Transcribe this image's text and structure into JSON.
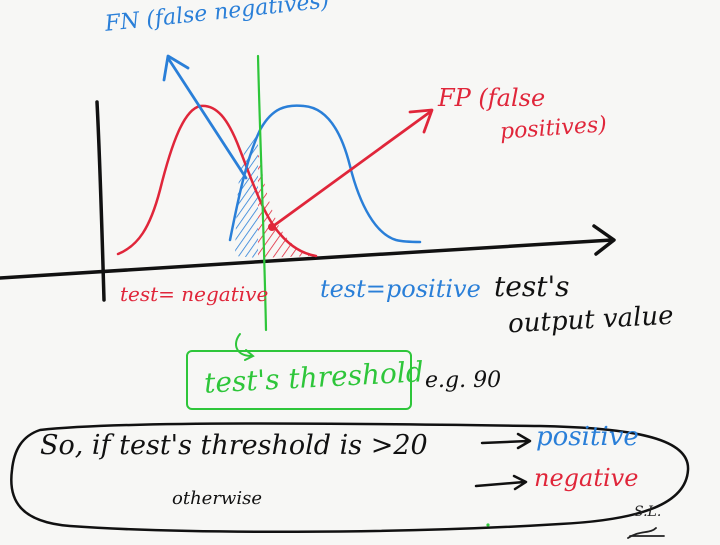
{
  "labels": {
    "fn": "FN (false negatives)",
    "fp_line1": "FP (false",
    "fp_line2": "positives)",
    "test_negative": "test= negative",
    "test_positive": "test=positive",
    "output_line1": "test's",
    "output_line2": "output value",
    "threshold": "test's threshold",
    "example": "e.g. 90"
  },
  "rule": {
    "condition": "So, if test's threshold is >20",
    "positive": "positive",
    "otherwise": "otherwise",
    "negative": "negative"
  },
  "signature": "S.L.",
  "colors": {
    "blue": "#2a7fd8",
    "red": "#e0263a",
    "green": "#2ec63a",
    "ink": "#111111"
  },
  "icons": [
    "arrow-right-icon",
    "arrow-right-icon"
  ]
}
